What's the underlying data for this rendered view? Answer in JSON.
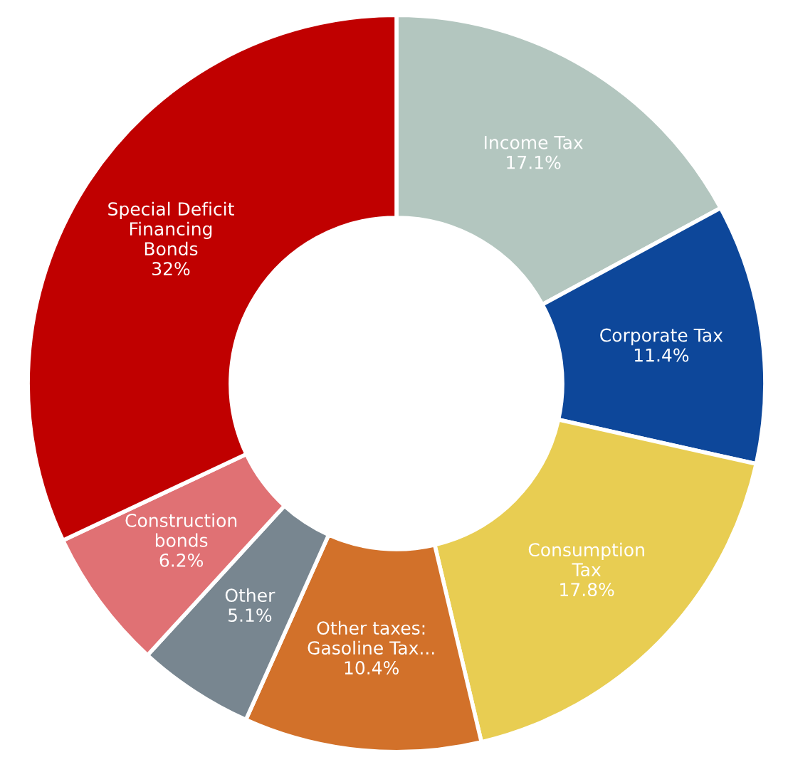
{
  "chart_data": {
    "type": "donut",
    "categories": [
      "Income Tax",
      "Corporate Tax",
      "Consumption\nTax",
      "Other taxes:\nGasoline Tax...",
      "Other",
      "Construction\nbonds",
      "Special Deficit\nFinancing\nBonds"
    ],
    "values": [
      17.1,
      11.4,
      17.8,
      10.4,
      5.1,
      6.2,
      32
    ],
    "value_labels": [
      "17.1%",
      "11.4%",
      "17.8%",
      "10.4%",
      "5.1%",
      "6.2%",
      "32%"
    ],
    "colors": [
      "#b3c6bf",
      "#0d479a",
      "#e8cd52",
      "#d2712a",
      "#788690",
      "#e07174",
      "#c00000"
    ],
    "legend": false
  }
}
